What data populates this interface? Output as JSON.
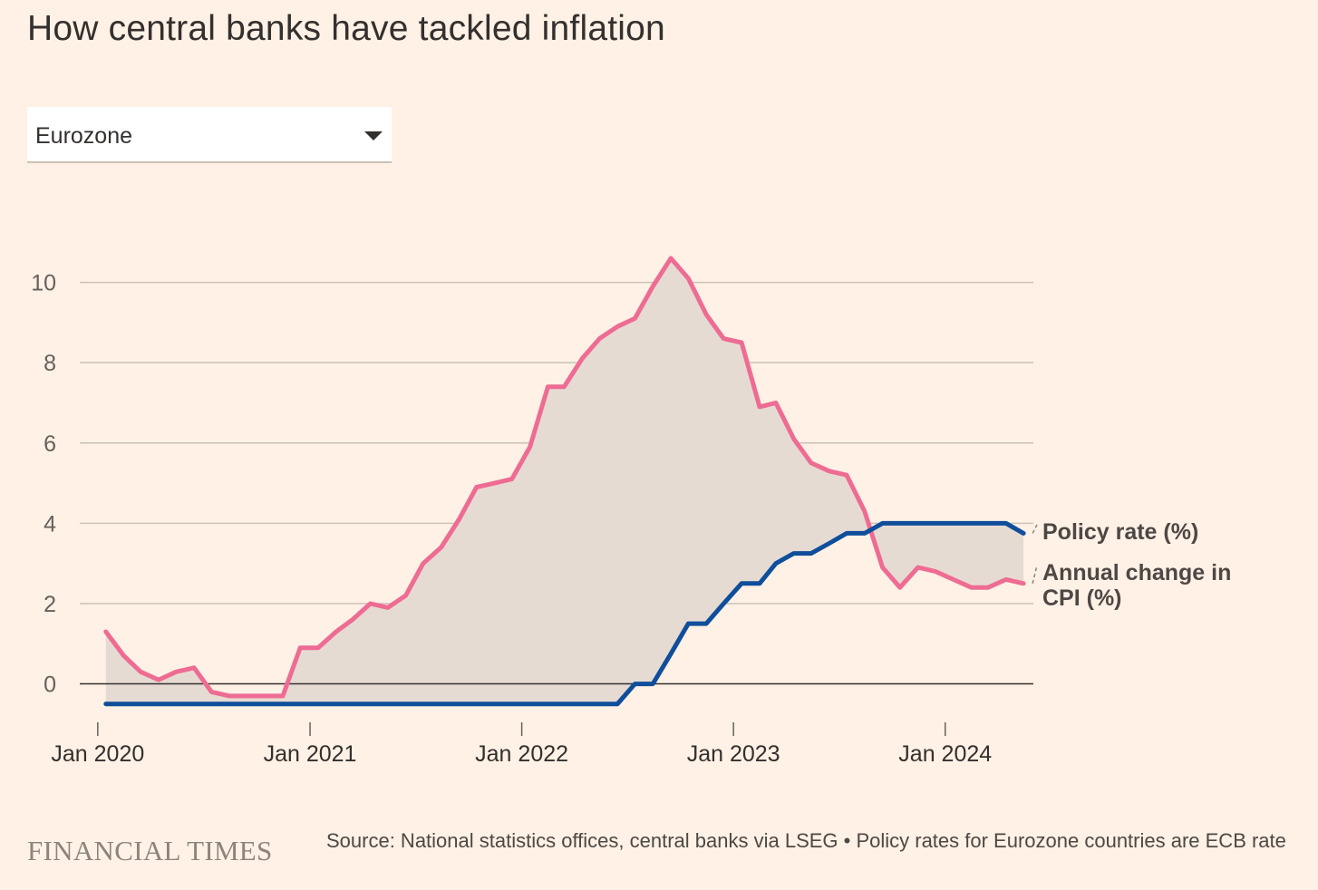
{
  "title": "How central banks have tackled inflation",
  "region_select": {
    "selected": "Eurozone"
  },
  "footer": {
    "logo": "FINANCIAL TIMES",
    "source": "Source: National statistics offices, central banks via LSEG • Policy rates for Eurozone countries are ECB rate"
  },
  "colors": {
    "cpi": "#EE6C93",
    "policy": "#0F4E9B",
    "fill": "#E6DBD3",
    "grid": "#CCC1B7",
    "zero": "#33302E"
  },
  "chart_data": {
    "type": "line",
    "ylim": [
      -0.8,
      10.6
    ],
    "yticks": [
      0,
      2,
      4,
      6,
      8,
      10
    ],
    "ytick_labels": [
      "0",
      "2",
      "4",
      "6",
      "8",
      "10"
    ],
    "xlim": [
      "2019-12-01",
      "2024-06-01"
    ],
    "xticks": [
      "2020-01-01",
      "2021-01-01",
      "2022-01-01",
      "2023-01-01",
      "2024-01-01"
    ],
    "xtick_labels": [
      "Jan 2020",
      "Jan 2021",
      "Jan 2022",
      "Jan 2023",
      "Jan 2024"
    ],
    "area_between_series": true,
    "series": [
      {
        "name": "Annual change in CPI (%)",
        "label_lines": [
          "Annual change in",
          "CPI (%)"
        ],
        "color": "#EE6C93",
        "start": "2020-01",
        "values": [
          1.3,
          0.7,
          0.3,
          0.1,
          0.3,
          0.4,
          -0.2,
          -0.3,
          -0.3,
          -0.3,
          -0.3,
          0.9,
          0.9,
          1.3,
          1.6,
          2.0,
          1.9,
          2.2,
          3.0,
          3.4,
          4.1,
          4.9,
          5.0,
          5.1,
          5.9,
          7.4,
          7.4,
          8.1,
          8.6,
          8.9,
          9.1,
          9.9,
          10.6,
          10.1,
          9.2,
          8.6,
          8.5,
          6.9,
          7.0,
          6.1,
          5.5,
          5.3,
          5.2,
          4.3,
          2.9,
          2.4,
          2.9,
          2.8,
          2.6,
          2.4,
          2.4,
          2.6,
          2.5
        ]
      },
      {
        "name": "Policy rate (%)",
        "label_lines": [
          "Policy rate (%)"
        ],
        "color": "#0F4E9B",
        "start": "2020-01",
        "values": [
          -0.5,
          -0.5,
          -0.5,
          -0.5,
          -0.5,
          -0.5,
          -0.5,
          -0.5,
          -0.5,
          -0.5,
          -0.5,
          -0.5,
          -0.5,
          -0.5,
          -0.5,
          -0.5,
          -0.5,
          -0.5,
          -0.5,
          -0.5,
          -0.5,
          -0.5,
          -0.5,
          -0.5,
          -0.5,
          -0.5,
          -0.5,
          -0.5,
          -0.5,
          -0.5,
          0,
          0,
          0.75,
          1.5,
          1.5,
          2.0,
          2.5,
          2.5,
          3.0,
          3.25,
          3.25,
          3.5,
          3.75,
          3.75,
          4.0,
          4.0,
          4.0,
          4.0,
          4.0,
          4.0,
          4.0,
          4.0,
          3.75
        ]
      }
    ]
  }
}
